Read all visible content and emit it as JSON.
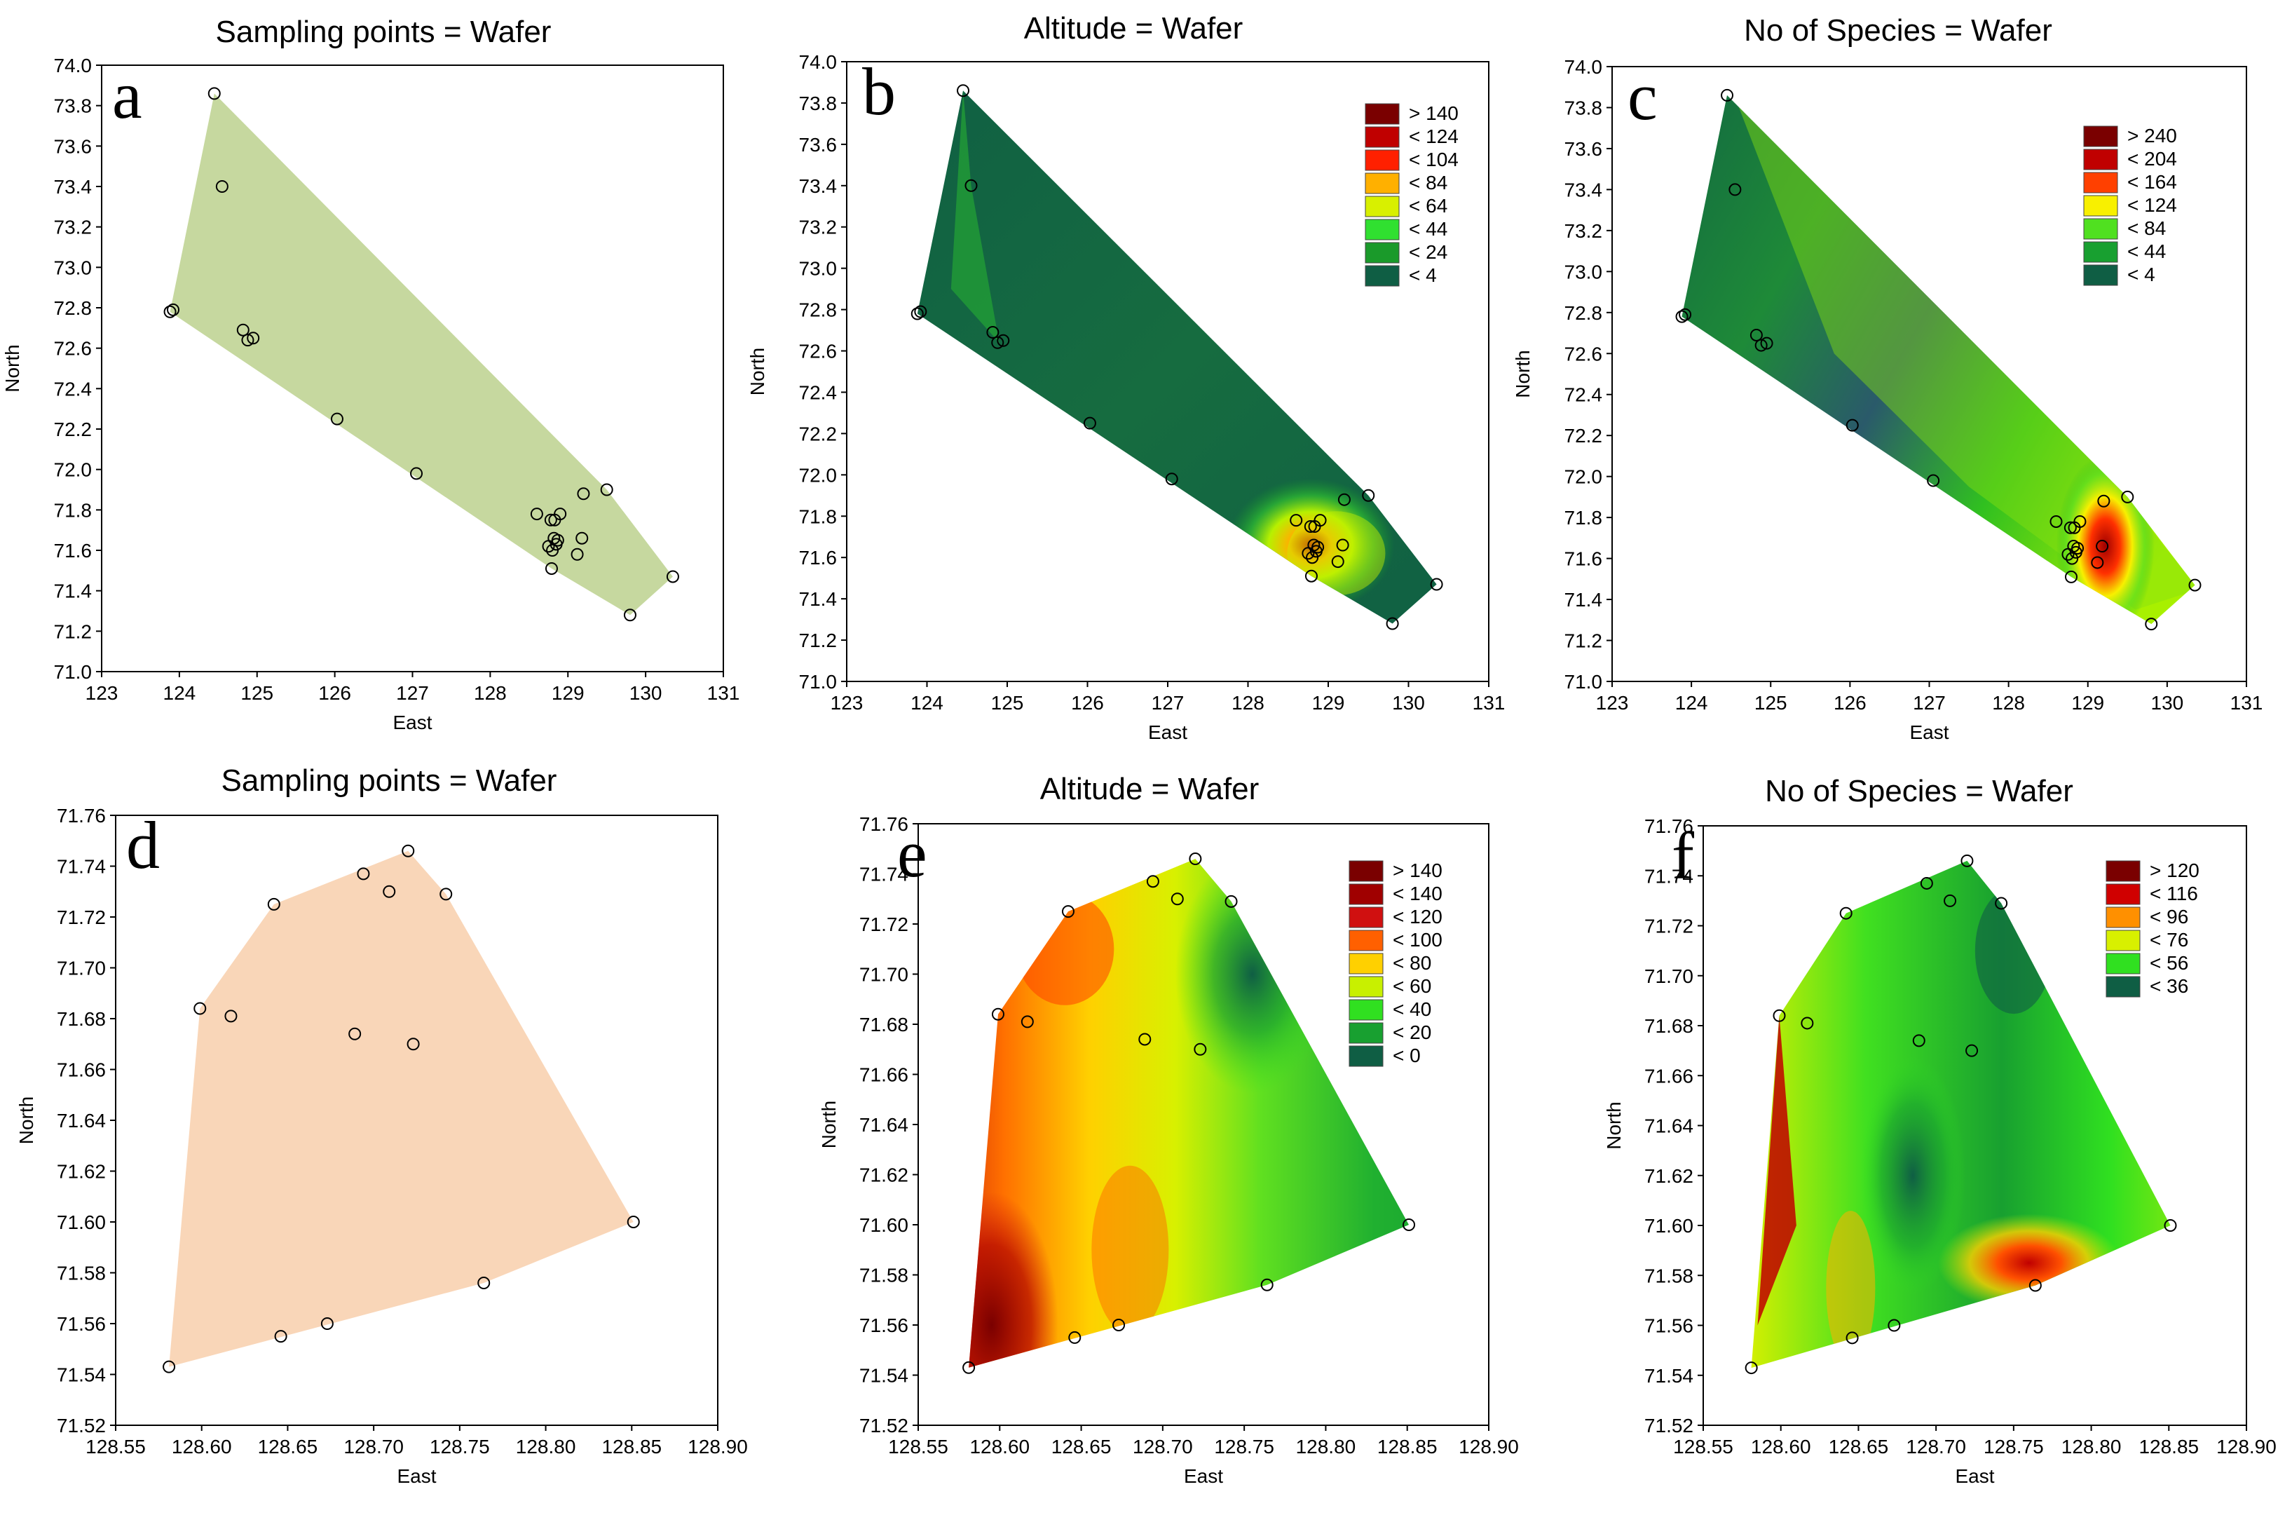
{
  "chart_data": [
    {
      "panel": "a",
      "type": "scatter",
      "fill": "hull",
      "title": "Sampling points = Wafer",
      "xlabel": "East",
      "ylabel": "North",
      "xlim": [
        123,
        131
      ],
      "ylim": [
        71.0,
        74.0
      ],
      "xticks": [
        "123",
        "124",
        "125",
        "126",
        "127",
        "128",
        "129",
        "130",
        "131"
      ],
      "yticks": [
        "71.0",
        "71.2",
        "71.4",
        "71.6",
        "71.8",
        "72.0",
        "72.2",
        "72.4",
        "72.6",
        "72.8",
        "73.0",
        "73.2",
        "73.4",
        "73.6",
        "73.8",
        "74.0"
      ],
      "hull_color": "#c6d89f",
      "points": "overview"
    },
    {
      "panel": "b",
      "type": "contour",
      "title": "Altitude = Wafer",
      "xlabel": "East",
      "ylabel": "North",
      "xlim": [
        123,
        131
      ],
      "ylim": [
        71.0,
        74.0
      ],
      "xticks": [
        "123",
        "124",
        "125",
        "126",
        "127",
        "128",
        "129",
        "130",
        "131"
      ],
      "yticks": [
        "71.0",
        "71.2",
        "71.4",
        "71.6",
        "71.8",
        "72.0",
        "72.2",
        "72.4",
        "72.6",
        "72.8",
        "73.0",
        "73.2",
        "73.4",
        "73.6",
        "73.8",
        "74.0"
      ],
      "legend": [
        "> 140",
        "< 124",
        "< 104",
        "< 84",
        "< 64",
        "< 44",
        "< 24",
        "< 4"
      ],
      "legend_colors": [
        "#7a0000",
        "#c00000",
        "#ff2000",
        "#ffb000",
        "#d8f000",
        "#30e030",
        "#1a9a2a",
        "#0f5e44"
      ],
      "points": "overview"
    },
    {
      "panel": "c",
      "type": "contour",
      "title": "No of Species = Wafer",
      "xlabel": "East",
      "ylabel": "North",
      "xlim": [
        123,
        131
      ],
      "ylim": [
        71.0,
        74.0
      ],
      "xticks": [
        "123",
        "124",
        "125",
        "126",
        "127",
        "128",
        "129",
        "130",
        "131"
      ],
      "yticks": [
        "71.0",
        "71.2",
        "71.4",
        "71.6",
        "71.8",
        "72.0",
        "72.2",
        "72.4",
        "72.6",
        "72.8",
        "73.0",
        "73.2",
        "73.4",
        "73.6",
        "73.8",
        "74.0"
      ],
      "legend": [
        "> 240",
        "< 204",
        "< 164",
        "< 124",
        "< 84",
        "< 44",
        "< 4"
      ],
      "legend_colors": [
        "#7a0000",
        "#c00000",
        "#ff4000",
        "#f8f000",
        "#50e020",
        "#18a030",
        "#0f5e44"
      ],
      "points": "overview"
    },
    {
      "panel": "d",
      "type": "scatter",
      "fill": "hull",
      "title": "Sampling points = Wafer",
      "xlabel": "East",
      "ylabel": "North",
      "xlim": [
        128.55,
        128.9
      ],
      "ylim": [
        71.52,
        71.76
      ],
      "xticks": [
        "128.55",
        "128.60",
        "128.65",
        "128.70",
        "128.75",
        "128.80",
        "128.85",
        "128.90"
      ],
      "yticks": [
        "71.52",
        "71.54",
        "71.56",
        "71.58",
        "71.60",
        "71.62",
        "71.64",
        "71.66",
        "71.68",
        "71.70",
        "71.72",
        "71.74",
        "71.76"
      ],
      "hull_color": "#f9d6b8",
      "points": "detail"
    },
    {
      "panel": "e",
      "type": "contour",
      "title": "Altitude = Wafer",
      "xlabel": "East",
      "ylabel": "North",
      "xlim": [
        128.55,
        128.9
      ],
      "ylim": [
        71.52,
        71.76
      ],
      "xticks": [
        "128.55",
        "128.60",
        "128.65",
        "128.70",
        "128.75",
        "128.80",
        "128.85",
        "128.90"
      ],
      "yticks": [
        "71.52",
        "71.54",
        "71.56",
        "71.58",
        "71.60",
        "71.62",
        "71.64",
        "71.66",
        "71.68",
        "71.70",
        "71.72",
        "71.74",
        "71.76"
      ],
      "legend": [
        "> 140",
        "< 140",
        "< 120",
        "< 100",
        "< 80",
        "< 60",
        "< 40",
        "< 20",
        "< 0"
      ],
      "legend_colors": [
        "#7a0000",
        "#a00000",
        "#d01010",
        "#ff6000",
        "#ffd000",
        "#c8f000",
        "#30e020",
        "#18a030",
        "#0f5e44"
      ],
      "points": "detail"
    },
    {
      "panel": "f",
      "type": "contour",
      "title": "No of Species = Wafer",
      "xlabel": "East",
      "ylabel": "North",
      "xlim": [
        128.55,
        128.9
      ],
      "ylim": [
        71.52,
        71.76
      ],
      "xticks": [
        "128.55",
        "128.60",
        "128.65",
        "128.70",
        "128.75",
        "128.80",
        "128.85",
        "128.90"
      ],
      "yticks": [
        "71.52",
        "71.54",
        "71.56",
        "71.58",
        "71.60",
        "71.62",
        "71.64",
        "71.66",
        "71.68",
        "71.70",
        "71.72",
        "71.74",
        "71.76"
      ],
      "legend": [
        "> 120",
        "< 116",
        "< 96",
        "< 76",
        "< 56",
        "< 36"
      ],
      "legend_colors": [
        "#7a0000",
        "#d00000",
        "#ff9000",
        "#d8f000",
        "#30e020",
        "#0f5e44"
      ],
      "points": "detail"
    }
  ],
  "point_sets": {
    "overview": [
      {
        "x": 124.45,
        "y": 73.86
      },
      {
        "x": 124.55,
        "y": 73.4
      },
      {
        "x": 123.88,
        "y": 72.78
      },
      {
        "x": 123.92,
        "y": 72.79
      },
      {
        "x": 124.82,
        "y": 72.69
      },
      {
        "x": 124.88,
        "y": 72.64
      },
      {
        "x": 124.95,
        "y": 72.65
      },
      {
        "x": 126.03,
        "y": 72.25
      },
      {
        "x": 127.05,
        "y": 71.98
      },
      {
        "x": 128.6,
        "y": 71.78
      },
      {
        "x": 128.78,
        "y": 71.75
      },
      {
        "x": 128.83,
        "y": 71.75
      },
      {
        "x": 128.9,
        "y": 71.78
      },
      {
        "x": 129.2,
        "y": 71.88
      },
      {
        "x": 129.5,
        "y": 71.9
      },
      {
        "x": 128.82,
        "y": 71.66
      },
      {
        "x": 128.87,
        "y": 71.65
      },
      {
        "x": 128.75,
        "y": 71.62
      },
      {
        "x": 128.8,
        "y": 71.6
      },
      {
        "x": 128.85,
        "y": 71.63
      },
      {
        "x": 129.18,
        "y": 71.66
      },
      {
        "x": 129.12,
        "y": 71.58
      },
      {
        "x": 128.79,
        "y": 71.51
      },
      {
        "x": 129.8,
        "y": 71.28
      },
      {
        "x": 130.35,
        "y": 71.47
      }
    ],
    "detail": [
      {
        "x": 128.581,
        "y": 71.543
      },
      {
        "x": 128.599,
        "y": 71.684
      },
      {
        "x": 128.617,
        "y": 71.681
      },
      {
        "x": 128.642,
        "y": 71.725
      },
      {
        "x": 128.646,
        "y": 71.555
      },
      {
        "x": 128.673,
        "y": 71.56
      },
      {
        "x": 128.689,
        "y": 71.674
      },
      {
        "x": 128.694,
        "y": 71.737
      },
      {
        "x": 128.709,
        "y": 71.73
      },
      {
        "x": 128.72,
        "y": 71.746
      },
      {
        "x": 128.723,
        "y": 71.67
      },
      {
        "x": 128.742,
        "y": 71.729
      },
      {
        "x": 128.764,
        "y": 71.576
      },
      {
        "x": 128.851,
        "y": 71.6
      }
    ]
  }
}
